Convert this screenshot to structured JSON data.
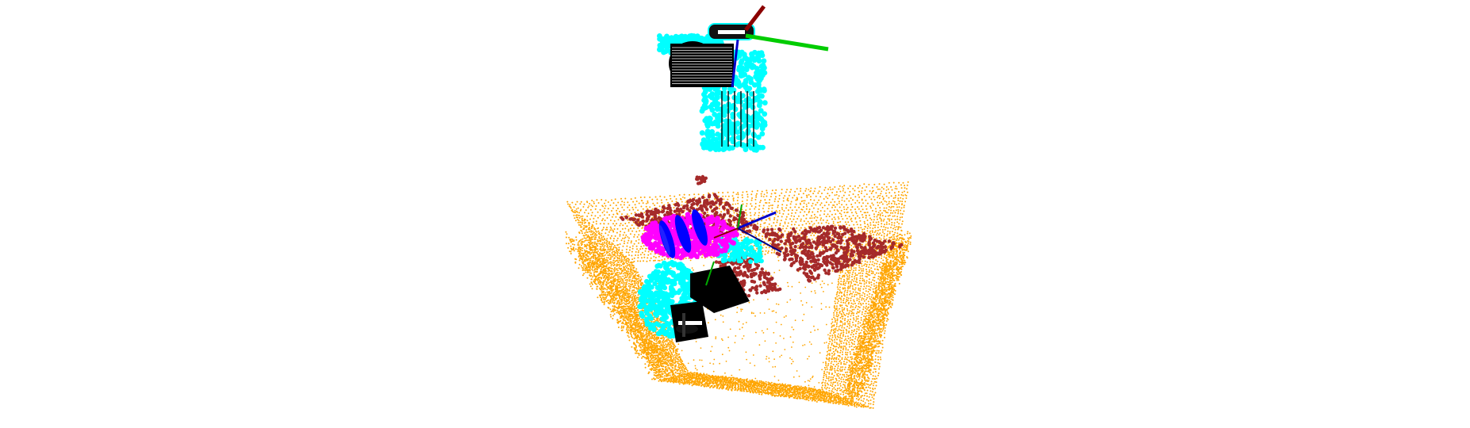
{
  "viewer": {
    "background_color": "#ffffff"
  },
  "colors": {
    "scene_cloud": "#ffa500",
    "plane_points": "#a52a2a",
    "robot_points": "#00ffff",
    "robot_mesh": "#000000",
    "target_points": "#ff00ff",
    "grasp_markers": "#0000ff",
    "axis_x": "#8b0000",
    "axis_y": "#00cc00",
    "axis_z": "#0000cc"
  },
  "objects": [
    {
      "name": "scene-point-cloud",
      "color_key": "scene_cloud"
    },
    {
      "name": "support-plane-points",
      "color_key": "plane_points"
    },
    {
      "name": "robot-gripper-top",
      "color_key": "robot_points"
    },
    {
      "name": "robot-gripper-bottom",
      "color_key": "robot_points"
    },
    {
      "name": "target-object-points",
      "color_key": "target_points"
    },
    {
      "name": "grasp-candidates",
      "color_key": "grasp_markers"
    },
    {
      "name": "coordinate-frame-top",
      "color_key": "axis_x"
    },
    {
      "name": "coordinate-frame-bottom",
      "color_key": "axis_z"
    }
  ]
}
